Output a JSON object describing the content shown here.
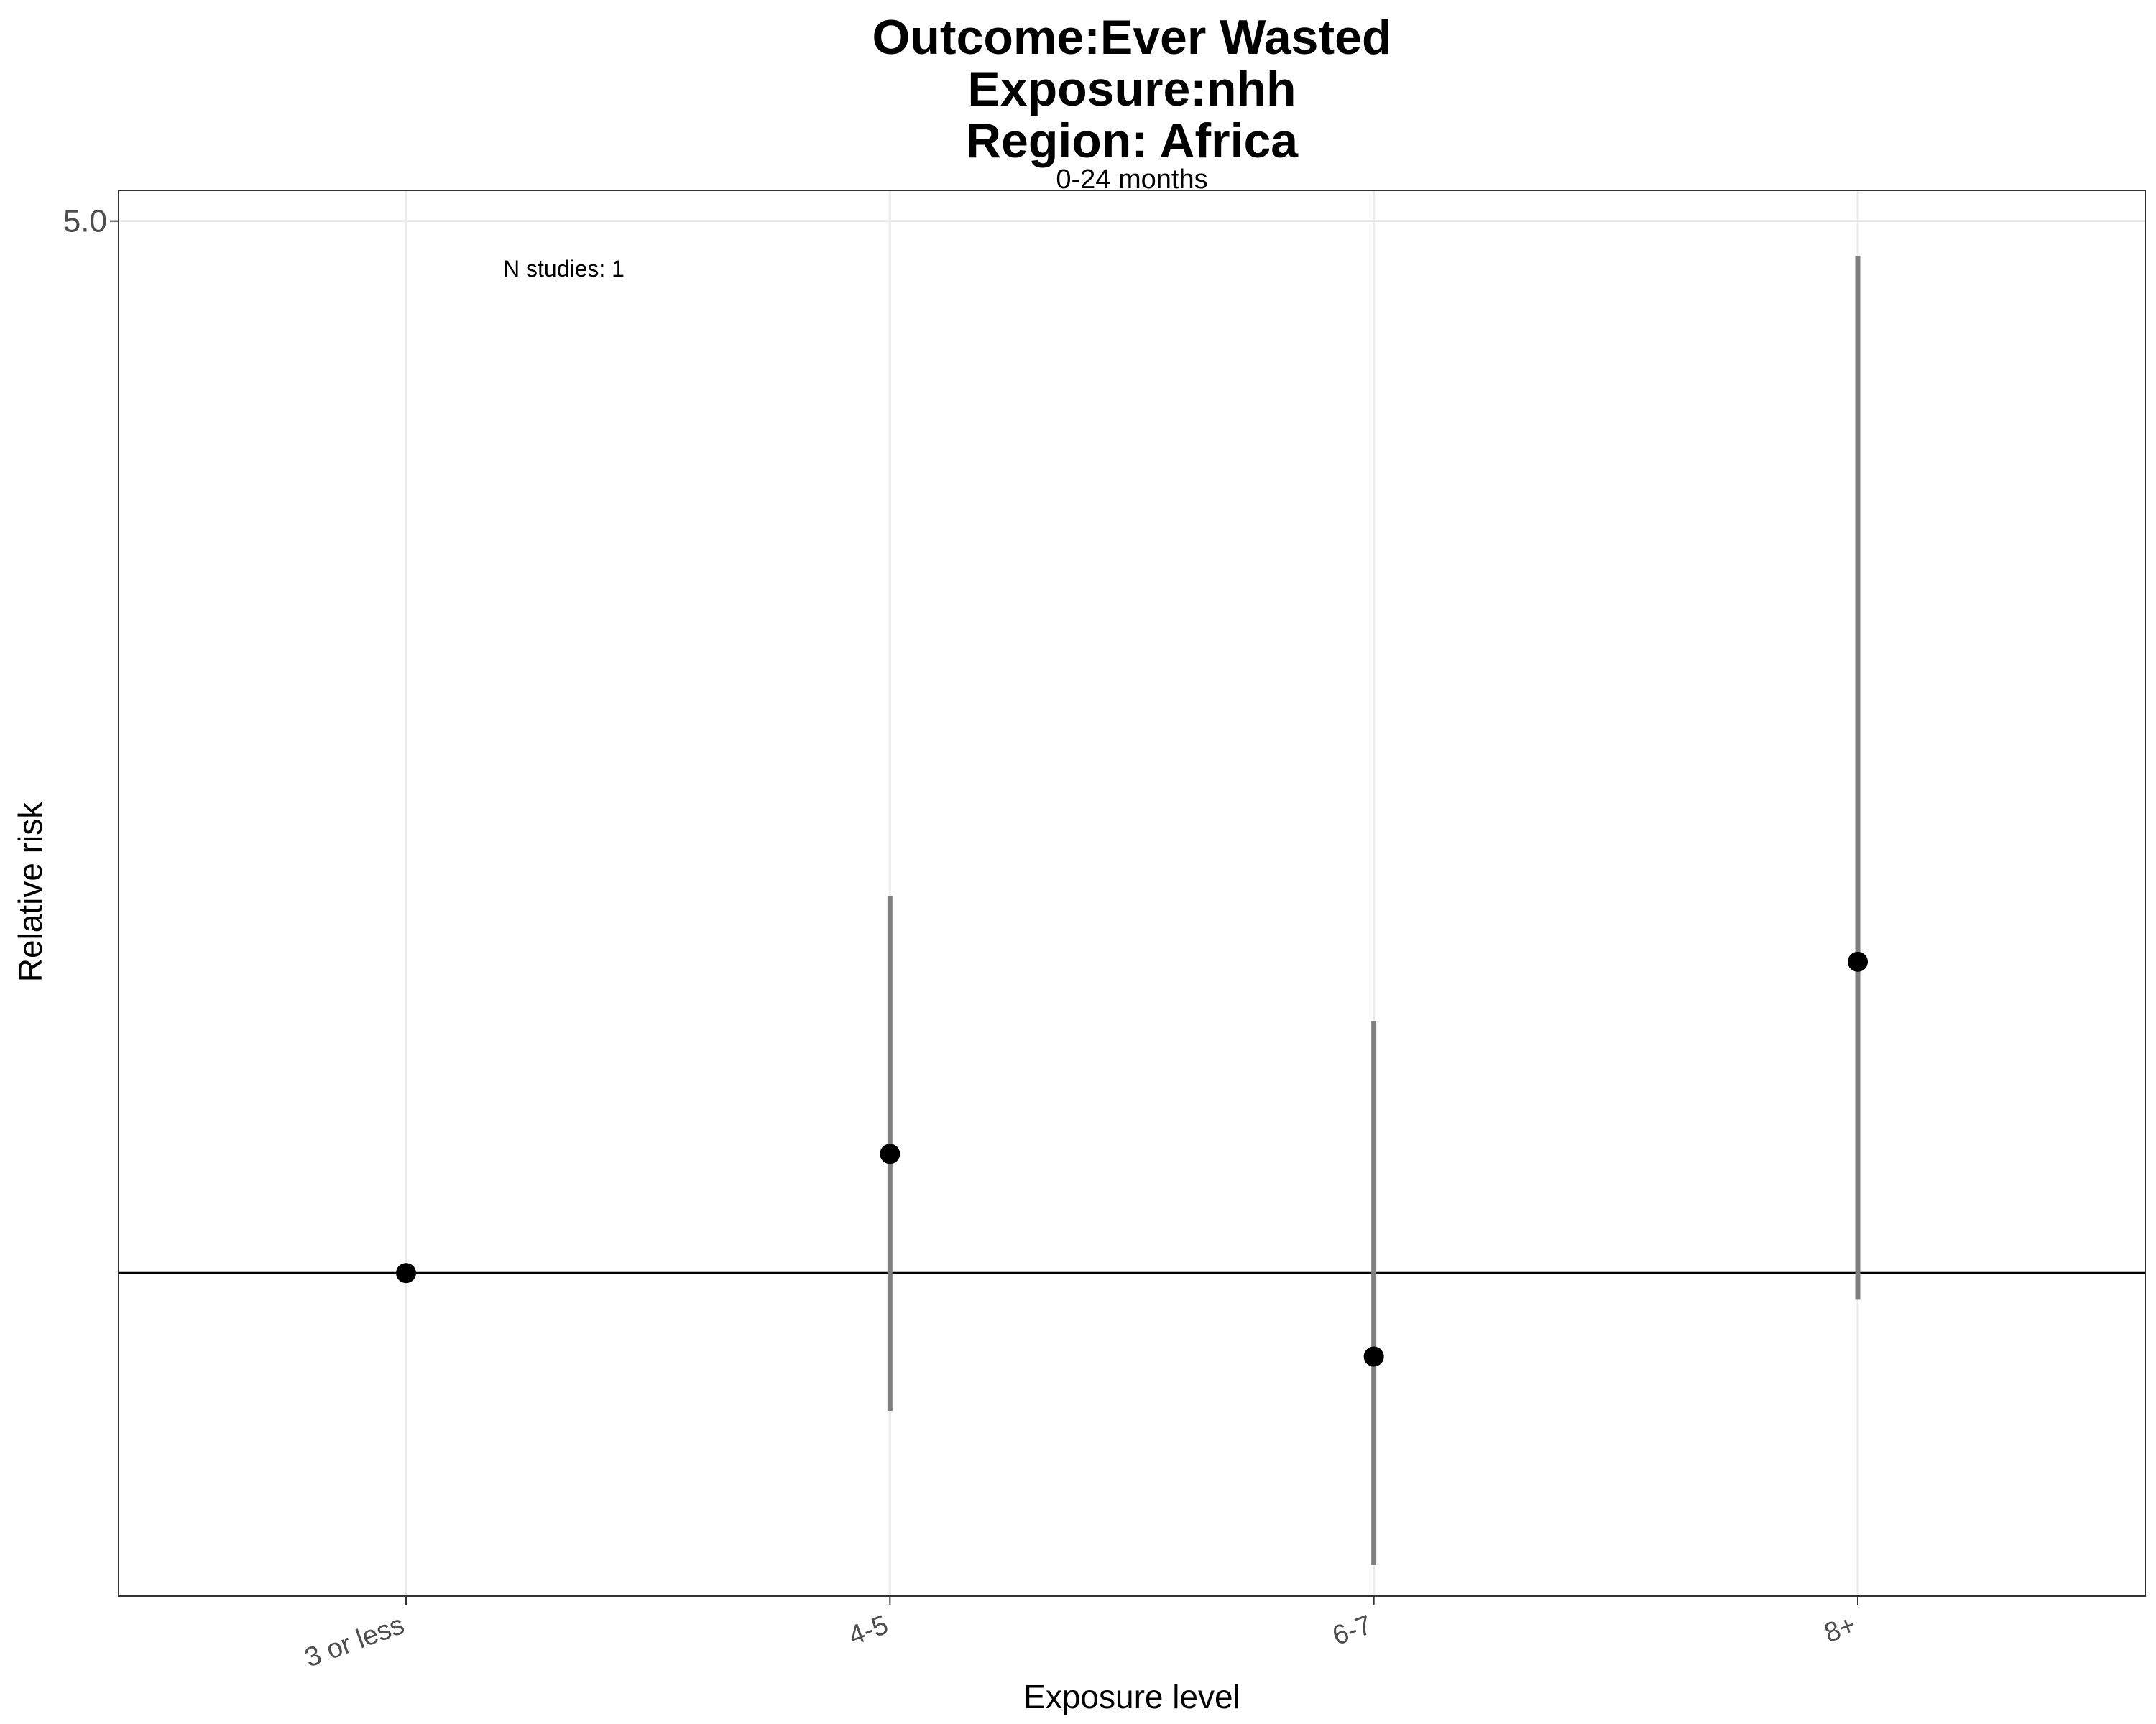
{
  "chart_data": {
    "type": "scatter",
    "title_lines": [
      "Outcome:Ever Wasted",
      "Exposure:nhh",
      "Region: Africa"
    ],
    "subtitle": "0-24 months",
    "xlabel": "Exposure level",
    "ylabel": "Relative risk",
    "categories": [
      "3 or less",
      "4-5",
      "6-7",
      "8+"
    ],
    "y_scale": "log",
    "y_ticks": [
      {
        "value": 5.0,
        "label": "5.0"
      }
    ],
    "ylim": [
      0.61,
      5.24
    ],
    "reference_line": 1.0,
    "points": [
      {
        "category": "3 or less",
        "estimate": 1.0,
        "ci_lower": null,
        "ci_upper": null
      },
      {
        "category": "4-5",
        "estimate": 1.2,
        "ci_lower": 0.81,
        "ci_upper": 1.78
      },
      {
        "category": "6-7",
        "estimate": 0.88,
        "ci_lower": 0.64,
        "ci_upper": 1.47
      },
      {
        "category": "8+",
        "estimate": 1.61,
        "ci_lower": 0.96,
        "ci_upper": 4.74
      }
    ],
    "annotation": "N studies: 1",
    "grid": true,
    "colors": {
      "point": "#000000",
      "ci": "#7f7f7f",
      "grid": "#ebebeb",
      "panel_border": "#333333"
    }
  }
}
